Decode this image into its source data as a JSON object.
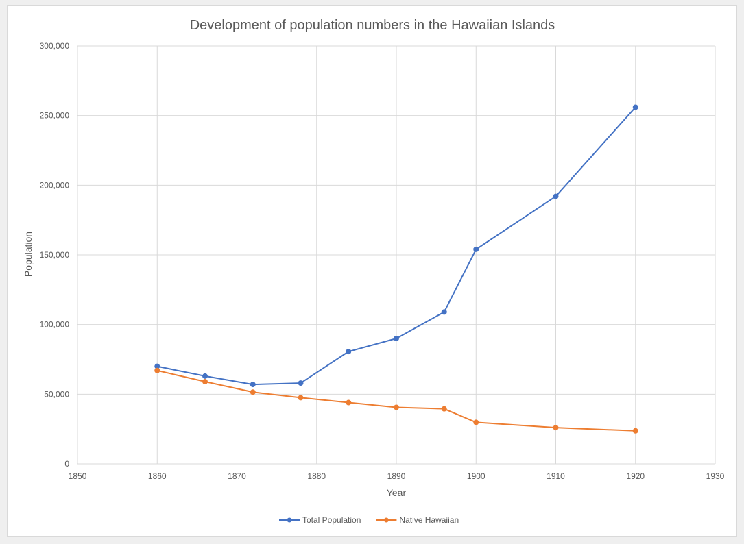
{
  "chart_data": {
    "type": "scatter",
    "title": "Development of population numbers in the Hawaiian Islands",
    "xlabel": "Year",
    "ylabel": "Population",
    "xlim": [
      1850,
      1930
    ],
    "ylim": [
      0,
      300000
    ],
    "x_ticks": [
      "1850",
      "1860",
      "1870",
      "1880",
      "1890",
      "1900",
      "1910",
      "1920",
      "1930"
    ],
    "y_ticks": [
      "0",
      "50,000",
      "100,000",
      "150,000",
      "200,000",
      "250,000",
      "300,000"
    ],
    "grid": true,
    "legend_position": "bottom",
    "series": [
      {
        "name": "Total Population",
        "color": "#4472c4",
        "x": [
          1860,
          1866,
          1872,
          1878,
          1884,
          1890,
          1896,
          1900,
          1910,
          1920
        ],
        "y": [
          70000,
          63000,
          57000,
          58000,
          80600,
          90000,
          109000,
          154000,
          192000,
          256000
        ]
      },
      {
        "name": "Native Hawaiian",
        "color": "#ed7d31",
        "x": [
          1860,
          1866,
          1872,
          1878,
          1884,
          1890,
          1896,
          1900,
          1910,
          1920
        ],
        "y": [
          67000,
          59000,
          51500,
          47500,
          44000,
          40600,
          39500,
          29800,
          26000,
          23700
        ]
      }
    ]
  }
}
